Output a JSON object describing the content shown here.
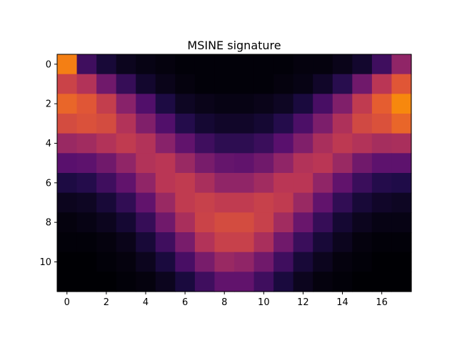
{
  "chart_data": {
    "type": "heatmap",
    "title": "MSINE signature",
    "xlabel": "",
    "ylabel": "",
    "x_ticks": [
      "0",
      "2",
      "4",
      "6",
      "8",
      "10",
      "12",
      "14",
      "16"
    ],
    "y_ticks": [
      "0",
      "2",
      "4",
      "6",
      "8",
      "10"
    ],
    "n_rows": 12,
    "n_cols": 18,
    "colormap": "inferno-like (black → purple → magenta → red)",
    "vmin": 0,
    "vmax": 1,
    "grid": false,
    "values": [
      [
        0.72,
        0.2,
        0.1,
        0.05,
        0.03,
        0.02,
        0.01,
        0.01,
        0.01,
        0.01,
        0.01,
        0.01,
        0.02,
        0.02,
        0.04,
        0.08,
        0.2,
        0.4
      ],
      [
        0.55,
        0.48,
        0.32,
        0.18,
        0.08,
        0.04,
        0.02,
        0.01,
        0.01,
        0.01,
        0.01,
        0.02,
        0.03,
        0.07,
        0.15,
        0.32,
        0.5,
        0.62
      ],
      [
        0.66,
        0.62,
        0.53,
        0.38,
        0.24,
        0.12,
        0.06,
        0.04,
        0.03,
        0.03,
        0.04,
        0.06,
        0.11,
        0.22,
        0.36,
        0.52,
        0.64,
        0.74
      ],
      [
        0.58,
        0.6,
        0.58,
        0.48,
        0.36,
        0.24,
        0.14,
        0.09,
        0.07,
        0.07,
        0.09,
        0.14,
        0.23,
        0.35,
        0.47,
        0.57,
        0.6,
        0.66
      ],
      [
        0.42,
        0.44,
        0.48,
        0.52,
        0.48,
        0.38,
        0.28,
        0.2,
        0.16,
        0.16,
        0.19,
        0.26,
        0.36,
        0.46,
        0.51,
        0.48,
        0.45,
        0.46
      ],
      [
        0.26,
        0.27,
        0.32,
        0.4,
        0.48,
        0.5,
        0.42,
        0.34,
        0.29,
        0.28,
        0.32,
        0.4,
        0.48,
        0.5,
        0.42,
        0.32,
        0.27,
        0.27
      ],
      [
        0.12,
        0.14,
        0.2,
        0.28,
        0.4,
        0.5,
        0.52,
        0.46,
        0.4,
        0.4,
        0.44,
        0.5,
        0.5,
        0.4,
        0.28,
        0.19,
        0.14,
        0.13
      ],
      [
        0.05,
        0.06,
        0.1,
        0.17,
        0.28,
        0.42,
        0.52,
        0.54,
        0.52,
        0.52,
        0.54,
        0.52,
        0.42,
        0.28,
        0.17,
        0.1,
        0.07,
        0.06
      ],
      [
        0.02,
        0.03,
        0.05,
        0.09,
        0.18,
        0.32,
        0.46,
        0.55,
        0.58,
        0.58,
        0.54,
        0.44,
        0.3,
        0.18,
        0.09,
        0.05,
        0.03,
        0.03
      ],
      [
        0.01,
        0.01,
        0.02,
        0.04,
        0.1,
        0.2,
        0.34,
        0.48,
        0.54,
        0.54,
        0.46,
        0.32,
        0.19,
        0.1,
        0.05,
        0.02,
        0.01,
        0.01
      ],
      [
        0.0,
        0.0,
        0.01,
        0.02,
        0.05,
        0.11,
        0.22,
        0.34,
        0.42,
        0.4,
        0.32,
        0.2,
        0.1,
        0.05,
        0.02,
        0.01,
        0.0,
        0.0
      ],
      [
        0.0,
        0.0,
        0.0,
        0.01,
        0.02,
        0.05,
        0.11,
        0.2,
        0.28,
        0.28,
        0.2,
        0.11,
        0.05,
        0.02,
        0.01,
        0.0,
        0.0,
        0.0
      ]
    ]
  }
}
